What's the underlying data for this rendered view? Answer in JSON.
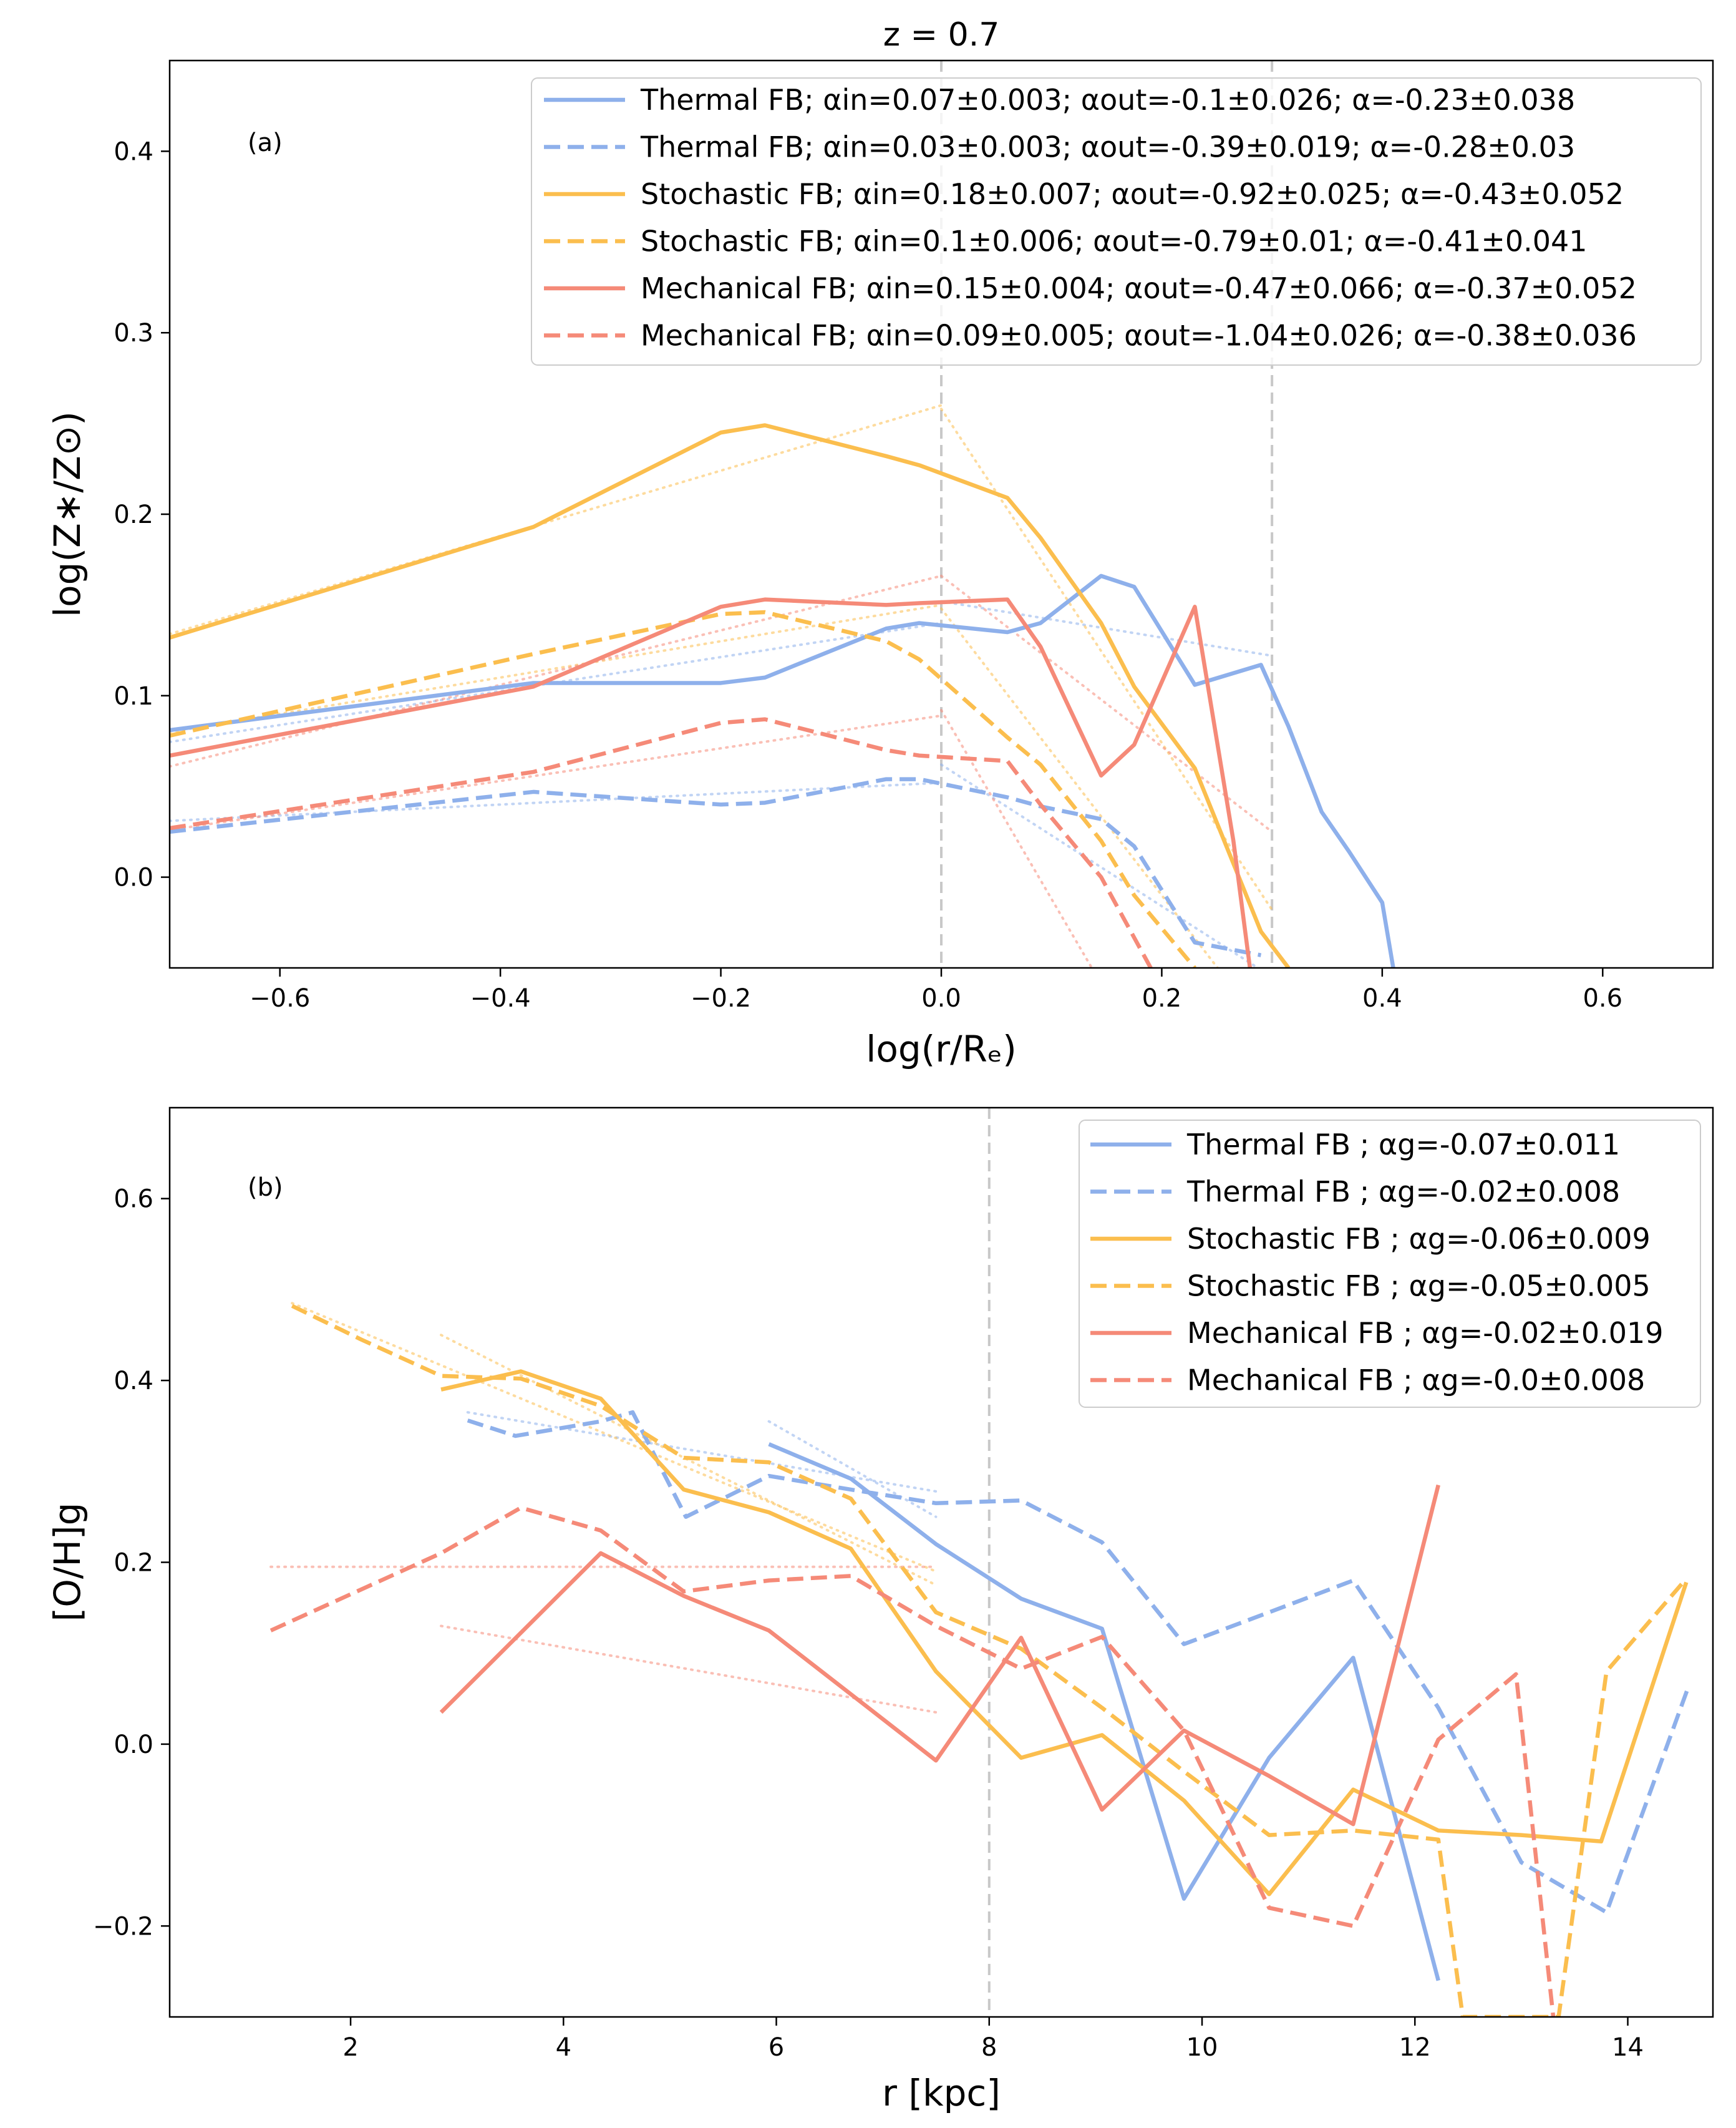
{
  "figure": {
    "title": "z = 0.7",
    "colors": {
      "thermal": "#8EB0EB",
      "stochastic": "#FBBE4E",
      "mechanical": "#F58A78",
      "vline": "#c8c8c8"
    }
  },
  "chart_data": [
    {
      "type": "line",
      "panel_label": "(a)",
      "title": "z = 0.7",
      "xlabel": "log(r/Rₑ)",
      "ylabel": "log(Z∗/Z⊙)",
      "xlim": [
        -0.7,
        0.7
      ],
      "ylim": [
        -0.05,
        0.45
      ],
      "xticks": [
        -0.6,
        -0.4,
        -0.2,
        0.0,
        0.2,
        0.4,
        0.6
      ],
      "xtick_labels": [
        "−0.6",
        "−0.4",
        "−0.2",
        "0.0",
        "0.2",
        "0.4",
        "0.6"
      ],
      "yticks": [
        0.0,
        0.1,
        0.2,
        0.3,
        0.4
      ],
      "ytick_labels": [
        "0.0",
        "0.1",
        "0.2",
        "0.3",
        "0.4"
      ],
      "vlines": [
        0.0,
        0.3
      ],
      "legend_position": "top-right",
      "series": [
        {
          "name": "Thermal FB; αin=0.07±0.003; αout=-0.1±0.026; α=-0.23±0.038",
          "color_key": "thermal",
          "style": "solid",
          "x": [
            -0.7,
            -0.37,
            -0.2,
            -0.16,
            -0.05,
            -0.02,
            0.06,
            0.09,
            0.145,
            0.175,
            0.23,
            0.29,
            0.315,
            0.345,
            0.37,
            0.4,
            0.41
          ],
          "y": [
            0.081,
            0.107,
            0.107,
            0.11,
            0.137,
            0.14,
            0.135,
            0.14,
            0.166,
            0.16,
            0.106,
            0.117,
            0.083,
            0.036,
            0.014,
            -0.014,
            -0.05
          ]
        },
        {
          "name": "Thermal FB; αin=0.03±0.003; αout=-0.39±0.019; α=-0.28±0.03",
          "color_key": "thermal",
          "style": "dashed",
          "x": [
            -0.7,
            -0.37,
            -0.2,
            -0.16,
            -0.05,
            -0.02,
            0.06,
            0.09,
            0.145,
            0.175,
            0.23,
            0.29
          ],
          "y": [
            0.025,
            0.047,
            0.04,
            0.041,
            0.054,
            0.054,
            0.044,
            0.039,
            0.032,
            0.017,
            -0.036,
            -0.043
          ]
        },
        {
          "name": "Stochastic FB; αin=0.18±0.007; αout=-0.92±0.025; α=-0.43±0.052",
          "color_key": "stochastic",
          "style": "solid",
          "x": [
            -0.7,
            -0.37,
            -0.2,
            -0.16,
            -0.05,
            -0.02,
            0.06,
            0.09,
            0.145,
            0.175,
            0.23,
            0.29,
            0.315
          ],
          "y": [
            0.132,
            0.193,
            0.245,
            0.249,
            0.232,
            0.227,
            0.209,
            0.187,
            0.14,
            0.105,
            0.06,
            -0.03,
            -0.05
          ]
        },
        {
          "name": "Stochastic FB; αin=0.1±0.006; αout=-0.79±0.01; α=-0.41±0.041",
          "color_key": "stochastic",
          "style": "dashed",
          "x": [
            -0.7,
            -0.37,
            -0.2,
            -0.16,
            -0.05,
            -0.02,
            0.06,
            0.09,
            0.145,
            0.175,
            0.23
          ],
          "y": [
            0.078,
            0.123,
            0.145,
            0.146,
            0.13,
            0.12,
            0.077,
            0.062,
            0.02,
            -0.01,
            -0.05
          ]
        },
        {
          "name": "Mechanical FB; αin=0.15±0.004; αout=-0.47±0.066; α=-0.37±0.052",
          "color_key": "mechanical",
          "style": "solid",
          "x": [
            -0.7,
            -0.37,
            -0.2,
            -0.16,
            -0.05,
            -0.02,
            0.06,
            0.09,
            0.145,
            0.175,
            0.23,
            0.265,
            0.28
          ],
          "y": [
            0.067,
            0.105,
            0.149,
            0.153,
            0.15,
            0.151,
            0.153,
            0.127,
            0.056,
            0.073,
            0.149,
            0.02,
            -0.05
          ]
        },
        {
          "name": "Mechanical FB; αin=0.09±0.005; αout=-1.04±0.026; α=-0.38±0.036",
          "color_key": "mechanical",
          "style": "dashed",
          "x": [
            -0.7,
            -0.37,
            -0.2,
            -0.16,
            -0.05,
            -0.02,
            0.06,
            0.09,
            0.145,
            0.19
          ],
          "y": [
            0.027,
            0.058,
            0.085,
            0.087,
            0.07,
            0.067,
            0.064,
            0.04,
            0.0,
            -0.05
          ]
        }
      ],
      "fit_lines": [
        {
          "color_key": "thermal",
          "x": [
            -0.7,
            0.0
          ],
          "y": [
            0.0745,
            0.14
          ]
        },
        {
          "color_key": "thermal",
          "x": [
            0.0,
            0.3
          ],
          "y": [
            0.152,
            0.122
          ]
        },
        {
          "color_key": "thermal",
          "x": [
            -0.7,
            0.0
          ],
          "y": [
            0.031,
            0.052
          ]
        },
        {
          "color_key": "thermal",
          "x": [
            0.0,
            0.3
          ],
          "y": [
            0.062,
            -0.055
          ]
        },
        {
          "color_key": "stochastic",
          "x": [
            -0.7,
            0.0
          ],
          "y": [
            0.134,
            0.26
          ]
        },
        {
          "color_key": "stochastic",
          "x": [
            0.0,
            0.3
          ],
          "y": [
            0.258,
            -0.018
          ]
        },
        {
          "color_key": "stochastic",
          "x": [
            -0.7,
            0.0
          ],
          "y": [
            0.08,
            0.15
          ]
        },
        {
          "color_key": "stochastic",
          "x": [
            0.0,
            0.3
          ],
          "y": [
            0.148,
            -0.089
          ]
        },
        {
          "color_key": "mechanical",
          "x": [
            -0.7,
            0.0
          ],
          "y": [
            0.061,
            0.166
          ]
        },
        {
          "color_key": "mechanical",
          "x": [
            0.0,
            0.3
          ],
          "y": [
            0.166,
            0.025
          ]
        },
        {
          "color_key": "mechanical",
          "x": [
            -0.7,
            0.0
          ],
          "y": [
            0.026,
            0.089
          ]
        },
        {
          "color_key": "mechanical",
          "x": [
            0.0,
            0.3
          ],
          "y": [
            0.092,
            -0.22
          ]
        }
      ]
    },
    {
      "type": "line",
      "panel_label": "(b)",
      "xlabel": "r [kpc]",
      "ylabel": "[O/H]g",
      "xlim": [
        0.3,
        14.8
      ],
      "ylim": [
        -0.3,
        0.7
      ],
      "xticks": [
        2,
        4,
        6,
        8,
        10,
        12,
        14
      ],
      "xtick_labels": [
        "2",
        "4",
        "6",
        "8",
        "10",
        "12",
        "14"
      ],
      "yticks": [
        -0.2,
        0.0,
        0.2,
        0.4,
        0.6
      ],
      "ytick_labels": [
        "−0.2",
        "0.0",
        "0.2",
        "0.4",
        "0.6"
      ],
      "vlines": [
        8.0
      ],
      "legend_position": "top-right",
      "series": [
        {
          "name": "Thermal FB ; αg=-0.07±0.011",
          "color_key": "thermal",
          "style": "solid",
          "x": [
            5.93,
            6.7,
            7.5,
            8.3,
            9.06,
            9.83,
            10.63,
            11.42,
            12.22
          ],
          "y": [
            0.33,
            0.292,
            0.22,
            0.16,
            0.127,
            -0.17,
            -0.015,
            0.095,
            -0.26
          ]
        },
        {
          "name": "Thermal FB ; αg=-0.02±0.008",
          "color_key": "thermal",
          "style": "dashed",
          "x": [
            3.1,
            3.55,
            4.35,
            4.65,
            5.15,
            5.93,
            6.7,
            7.5,
            8.3,
            9.06,
            9.83,
            10.63,
            11.42,
            12.22,
            13.0,
            13.8,
            14.56
          ],
          "y": [
            0.356,
            0.339,
            0.355,
            0.365,
            0.25,
            0.295,
            0.28,
            0.265,
            0.268,
            0.222,
            0.11,
            0.145,
            0.18,
            0.04,
            -0.13,
            -0.185,
            0.06
          ]
        },
        {
          "name": "Stochastic FB ; αg=-0.06±0.009",
          "color_key": "stochastic",
          "style": "solid",
          "x": [
            2.85,
            3.6,
            4.35,
            5.13,
            5.93,
            6.7,
            7.5,
            8.3,
            9.06,
            9.83,
            10.63,
            11.42,
            12.22,
            13.0,
            13.75,
            14.55
          ],
          "y": [
            0.39,
            0.41,
            0.38,
            0.28,
            0.255,
            0.215,
            0.08,
            -0.015,
            0.01,
            -0.062,
            -0.165,
            -0.05,
            -0.095,
            -0.1,
            -0.107,
            0.178
          ]
        },
        {
          "name": "Stochastic FB ; αg=-0.05±0.005",
          "color_key": "stochastic",
          "style": "dashed",
          "x": [
            1.45,
            2.1,
            2.85,
            3.6,
            4.35,
            5.13,
            5.93,
            6.7,
            7.5,
            8.3,
            9.06,
            9.83,
            10.63,
            11.42,
            12.22,
            12.45,
            13.35,
            13.8,
            14.55
          ],
          "y": [
            0.482,
            0.445,
            0.405,
            0.402,
            0.372,
            0.315,
            0.31,
            0.27,
            0.145,
            0.105,
            0.04,
            -0.03,
            -0.1,
            -0.095,
            -0.105,
            -0.3,
            -0.3,
            0.08,
            0.182
          ]
        },
        {
          "name": "Mechanical FB ; αg=-0.02±0.019",
          "color_key": "mechanical",
          "style": "solid",
          "x": [
            2.85,
            4.35,
            5.13,
            5.93,
            6.7,
            7.5,
            8.3,
            9.06,
            9.83,
            10.63,
            11.42,
            12.22
          ],
          "y": [
            0.035,
            0.21,
            0.163,
            0.125,
            0.055,
            -0.018,
            0.117,
            -0.072,
            0.015,
            -0.035,
            -0.088,
            0.285
          ]
        },
        {
          "name": "Mechanical FB ; αg=-0.0±0.008",
          "color_key": "mechanical",
          "style": "dashed",
          "x": [
            1.25,
            2.85,
            3.6,
            4.35,
            5.13,
            5.93,
            6.7,
            7.5,
            8.3,
            9.06,
            9.83,
            10.63,
            11.42,
            12.22,
            12.95,
            13.3
          ],
          "y": [
            0.125,
            0.21,
            0.26,
            0.235,
            0.168,
            0.18,
            0.185,
            0.13,
            0.083,
            0.118,
            0.015,
            -0.18,
            -0.2,
            0.005,
            0.077,
            -0.3
          ]
        }
      ],
      "fit_lines": [
        {
          "color_key": "thermal",
          "x": [
            5.93,
            7.5
          ],
          "y": [
            0.355,
            0.25
          ]
        },
        {
          "color_key": "thermal",
          "x": [
            3.1,
            7.5
          ],
          "y": [
            0.365,
            0.278
          ]
        },
        {
          "color_key": "stochastic",
          "x": [
            2.85,
            7.5
          ],
          "y": [
            0.45,
            0.175
          ]
        },
        {
          "color_key": "stochastic",
          "x": [
            1.45,
            7.5
          ],
          "y": [
            0.485,
            0.19
          ]
        },
        {
          "color_key": "mechanical",
          "x": [
            2.85,
            7.5
          ],
          "y": [
            0.13,
            0.035
          ]
        },
        {
          "color_key": "mechanical",
          "x": [
            1.25,
            7.5
          ],
          "y": [
            0.195,
            0.195
          ]
        }
      ]
    }
  ]
}
